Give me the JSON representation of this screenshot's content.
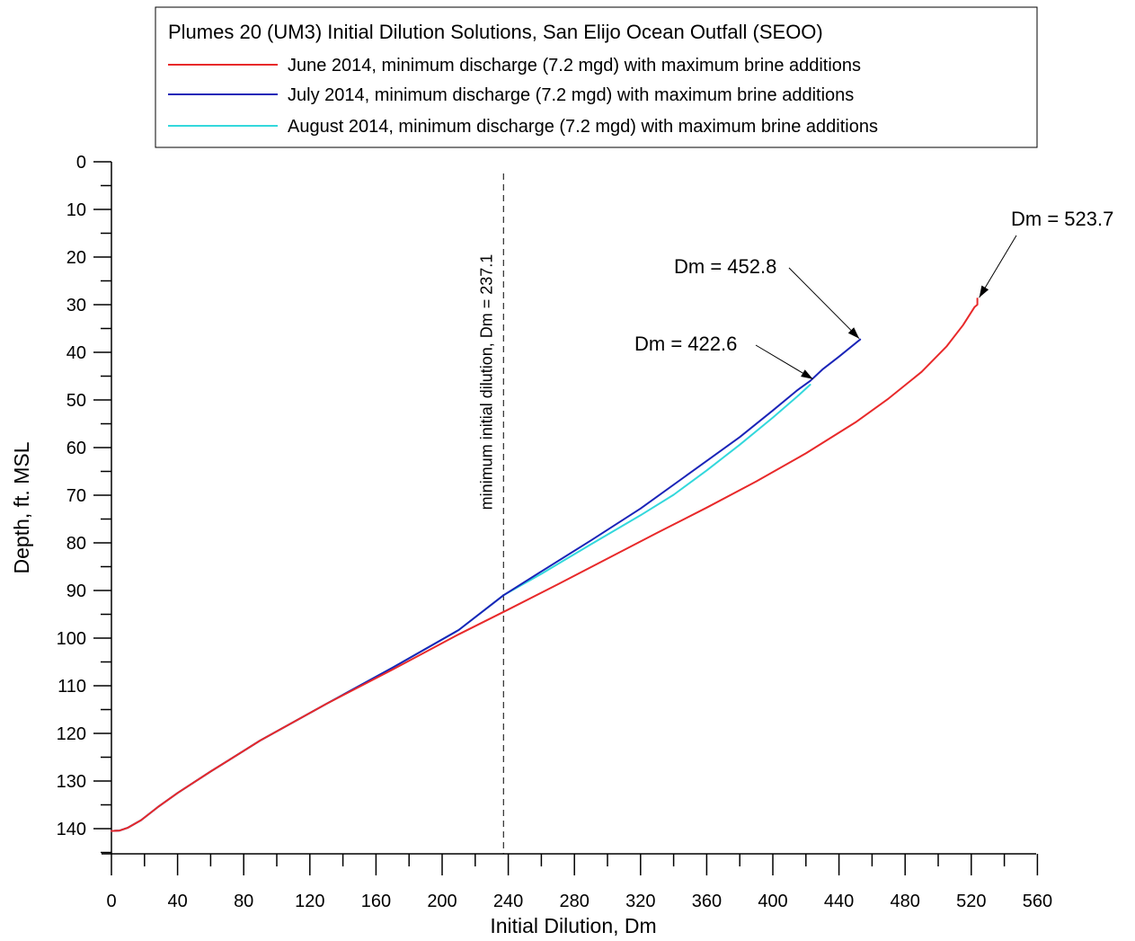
{
  "chart_data": {
    "type": "line",
    "title": "Plumes 20 (UM3) Initial Dilution Solutions, San Elijo Ocean Outfall (SEOO)",
    "xlabel": "Initial Dilution, Dm",
    "ylabel": "Depth, ft. MSL",
    "xlim": [
      0,
      560
    ],
    "ylim": [
      0,
      145
    ],
    "y_inverted": true,
    "x_major_ticks": [
      0,
      40,
      80,
      120,
      160,
      200,
      240,
      280,
      320,
      360,
      400,
      440,
      480,
      520,
      560
    ],
    "x_tick_labels": [
      "0",
      "40",
      "80",
      "120",
      "160",
      "200",
      "240",
      "280",
      "320",
      "360",
      "400",
      "440",
      "480",
      "520",
      "560"
    ],
    "y_major_ticks": [
      0,
      10,
      20,
      30,
      40,
      50,
      60,
      70,
      80,
      90,
      100,
      110,
      120,
      130,
      140
    ],
    "y_tick_labels": [
      "0",
      "10",
      "20",
      "30",
      "40",
      "50",
      "60",
      "70",
      "80",
      "90",
      "100",
      "110",
      "120",
      "130",
      "140"
    ],
    "grid": false,
    "legend_position": "top",
    "series": [
      {
        "name": "June 2014, minimum discharge (7.2 mgd) with maximum brine additions",
        "color": "#e8292a",
        "x": [
          0,
          5,
          10,
          18,
          28,
          40,
          60,
          90,
          130,
          170,
          210,
          240,
          270,
          300,
          330,
          360,
          390,
          420,
          450,
          470,
          490,
          505,
          515,
          522,
          523.7,
          523.7
        ],
        "y": [
          140.5,
          140.4,
          139.8,
          138.2,
          135.5,
          132.5,
          128,
          121.5,
          113.8,
          106.6,
          99.2,
          94,
          88.7,
          83.3,
          77.9,
          72.6,
          67.1,
          61.2,
          54.7,
          49.7,
          44.1,
          38.8,
          34.3,
          30.5,
          30,
          28.7
        ]
      },
      {
        "name": "July 2014, minimum discharge (7.2 mgd) with maximum brine additions",
        "color": "#1a24b8",
        "x": [
          0,
          5,
          10,
          18,
          28,
          40,
          60,
          90,
          130,
          170,
          210,
          237.1,
          260,
          290,
          320,
          350,
          380,
          400,
          415,
          422.6,
          430,
          440,
          452.8
        ],
        "y": [
          140.5,
          140.4,
          139.8,
          138.2,
          135.5,
          132.5,
          128,
          121.5,
          113.8,
          106.2,
          98.3,
          91,
          86,
          79.5,
          72.8,
          65.3,
          57.8,
          52.2,
          47.9,
          46,
          43.6,
          40.9,
          37.3
        ]
      },
      {
        "name": "August 2014, minimum discharge (7.2 mgd) with maximum brine additions",
        "color": "#33d8dc",
        "x": [
          0,
          5,
          10,
          18,
          28,
          40,
          60,
          90,
          130,
          170,
          210,
          237.1,
          260,
          290,
          320,
          340,
          360,
          380,
          400,
          415,
          422.6
        ],
        "y": [
          140.5,
          140.4,
          139.8,
          138.2,
          135.5,
          132.5,
          128,
          121.5,
          113.8,
          106.2,
          98.3,
          91,
          86.5,
          80.3,
          74.2,
          69.9,
          64.8,
          59.4,
          53.7,
          49.2,
          46.8
        ]
      }
    ],
    "annotations": [
      {
        "text": "Dm = 523.7",
        "x": 523.7,
        "y": 28.7
      },
      {
        "text": "Dm = 452.8",
        "x": 452.8,
        "y": 37.3
      },
      {
        "text": "Dm = 422.6",
        "x": 422.6,
        "y": 46
      }
    ],
    "reference_line": {
      "x": 237.1,
      "label": "minimum initial dilution, Dm = 237.1",
      "style": "dashed"
    }
  }
}
